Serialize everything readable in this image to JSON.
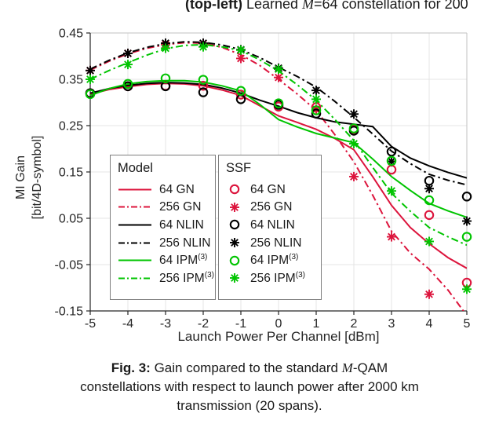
{
  "top_caption": {
    "bold": "(top-left)",
    "before_math": " Learned ",
    "math": "M",
    "rest": "=64 constellation for 200"
  },
  "axes": {
    "xlabel": "Launch Power Per Channel [dBm]",
    "ylabel_line1": "MI Gain",
    "ylabel_line2": "[bit/4D-symbol]"
  },
  "legend": {
    "model": {
      "title": "Model",
      "items": [
        {
          "label": "64 GN",
          "sup": ""
        },
        {
          "label": "256 GN",
          "sup": ""
        },
        {
          "label": "64 NLIN",
          "sup": ""
        },
        {
          "label": "256 NLIN",
          "sup": ""
        },
        {
          "label": "64 IPM",
          "sup": "(3)"
        },
        {
          "label": "256 IPM",
          "sup": "(3)"
        }
      ]
    },
    "ssf": {
      "title": "SSF",
      "items": [
        {
          "label": "64 GN",
          "sup": ""
        },
        {
          "label": "256 GN",
          "sup": ""
        },
        {
          "label": "64 NLIN",
          "sup": ""
        },
        {
          "label": "256 NLIN",
          "sup": ""
        },
        {
          "label": "64 IPM",
          "sup": "(3)"
        },
        {
          "label": "256 IPM",
          "sup": "(3)"
        }
      ]
    }
  },
  "caption": {
    "bold": "Fig. 3:",
    "line1_mid": " Gain compared to the standard ",
    "math": "M",
    "line1_end": "-QAM",
    "line2": "constellations with respect to launch power after 2000 km",
    "line3": "transmission (20 spans)."
  },
  "chart_data": {
    "type": "line",
    "title": "",
    "xlabel": "Launch Power Per Channel [dBm]",
    "ylabel": "MI Gain [bit/4D-symbol]",
    "xlim": [
      -5,
      5
    ],
    "ylim": [
      -0.15,
      0.45
    ],
    "grid": true,
    "legend_position": "southwest",
    "xtick_values": [
      -5,
      -4,
      -3,
      -2,
      -1,
      0,
      1,
      2,
      3,
      4,
      5
    ],
    "xtick_labels": [
      "-5",
      "-4",
      "-3",
      "-2",
      "-1",
      "0",
      "1",
      "2",
      "3",
      "4",
      "5"
    ],
    "ytick_values": [
      0.45,
      0.35,
      0.25,
      0.15,
      0.05,
      -0.05,
      -0.15
    ],
    "ytick_labels": [
      "0.45",
      "0.35",
      "0.25",
      "0.15",
      "0.05",
      "-0.05",
      "-0.15"
    ],
    "colors": {
      "GN": "#dc143c",
      "NLIN": "#000000",
      "IPM": "#00c400"
    },
    "model_lines": [
      {
        "name": "64 GN",
        "color": "#dc143c",
        "style": "solid",
        "x": [
          -5,
          -4.5,
          -4,
          -3.5,
          -3,
          -2.5,
          -2,
          -1.5,
          -1,
          -0.5,
          0,
          0.5,
          1,
          1.5,
          2,
          2.5,
          3,
          3.5,
          4,
          4.5,
          5
        ],
        "y": [
          0.318,
          0.328,
          0.334,
          0.339,
          0.341,
          0.34,
          0.336,
          0.327,
          0.315,
          0.293,
          0.271,
          0.257,
          0.242,
          0.222,
          0.198,
          0.14,
          0.078,
          0.03,
          -0.005,
          -0.035,
          -0.058
        ]
      },
      {
        "name": "256 GN",
        "color": "#dc143c",
        "style": "dashdot",
        "x": [
          -5,
          -4.5,
          -4,
          -3.5,
          -3,
          -2.5,
          -2,
          -1.5,
          -1,
          -0.5,
          0,
          0.5,
          1,
          1.5,
          2,
          2.5,
          3,
          3.5,
          4,
          4.5,
          5
        ],
        "y": [
          0.37,
          0.389,
          0.405,
          0.417,
          0.425,
          0.429,
          0.428,
          0.419,
          0.403,
          0.38,
          0.35,
          0.318,
          0.283,
          0.23,
          0.172,
          0.1,
          0.022,
          -0.025,
          -0.06,
          -0.105,
          -0.16
        ]
      },
      {
        "name": "64 NLIN",
        "color": "#000000",
        "style": "solid",
        "x": [
          -5,
          -4.5,
          -4,
          -3.5,
          -3,
          -2.5,
          -2,
          -1.5,
          -1,
          -0.5,
          0,
          0.5,
          1,
          1.5,
          2,
          2.5,
          3,
          3.5,
          4,
          4.5,
          5
        ],
        "y": [
          0.32,
          0.33,
          0.337,
          0.341,
          0.343,
          0.342,
          0.339,
          0.331,
          0.32,
          0.305,
          0.292,
          0.278,
          0.267,
          0.258,
          0.253,
          0.248,
          0.205,
          0.18,
          0.163,
          0.149,
          0.137
        ]
      },
      {
        "name": "256 NLIN",
        "color": "#000000",
        "style": "dashdot",
        "x": [
          -5,
          -4.5,
          -4,
          -3.5,
          -3,
          -2.5,
          -2,
          -1.5,
          -1,
          -0.5,
          0,
          0.5,
          1,
          1.5,
          2,
          2.5,
          3,
          3.5,
          4,
          4.5,
          5
        ],
        "y": [
          0.372,
          0.391,
          0.407,
          0.419,
          0.427,
          0.431,
          0.43,
          0.424,
          0.414,
          0.397,
          0.376,
          0.356,
          0.333,
          0.302,
          0.268,
          0.232,
          0.195,
          0.168,
          0.145,
          0.132,
          0.122
        ]
      },
      {
        "name": "64 IPM(3)",
        "color": "#00c400",
        "style": "solid",
        "x": [
          -5,
          -4.5,
          -4,
          -3.5,
          -3,
          -2.5,
          -2,
          -1.5,
          -1,
          -0.5,
          0,
          0.5,
          1,
          1.5,
          2,
          2.5,
          3,
          3.5,
          4,
          4.5,
          5
        ],
        "y": [
          0.315,
          0.33,
          0.34,
          0.345,
          0.347,
          0.347,
          0.344,
          0.336,
          0.325,
          0.296,
          0.263,
          0.247,
          0.233,
          0.223,
          0.213,
          0.178,
          0.14,
          0.11,
          0.082,
          0.066,
          0.052
        ]
      },
      {
        "name": "256 IPM(3)",
        "color": "#00c400",
        "style": "dashdot",
        "x": [
          -5,
          -4.5,
          -4,
          -3.5,
          -3,
          -2.5,
          -2,
          -1.5,
          -1,
          -0.5,
          0,
          0.5,
          1,
          1.5,
          2,
          2.5,
          3,
          3.5,
          4,
          4.5,
          5
        ],
        "y": [
          0.35,
          0.369,
          0.386,
          0.402,
          0.416,
          0.423,
          0.425,
          0.42,
          0.412,
          0.392,
          0.368,
          0.338,
          0.305,
          0.263,
          0.218,
          0.16,
          0.104,
          0.065,
          0.03,
          0.01,
          -0.008
        ]
      }
    ],
    "ssf_markers": [
      {
        "name": "64 GN",
        "color": "#dc143c",
        "marker": "circle",
        "x": [
          -5,
          -4,
          -3,
          -2,
          -1,
          0,
          1,
          2,
          3,
          4,
          5
        ],
        "y": [
          0.32,
          0.335,
          0.336,
          0.336,
          0.317,
          0.291,
          0.29,
          0.242,
          0.155,
          0.057,
          -0.089
        ]
      },
      {
        "name": "256 GN",
        "color": "#dc143c",
        "marker": "asterisk",
        "x": [
          -5,
          -4,
          -3,
          -2,
          -1,
          0,
          1,
          2,
          3,
          4
        ],
        "y": [
          0.369,
          0.406,
          0.425,
          0.427,
          0.395,
          0.354,
          0.285,
          0.14,
          0.01,
          -0.114
        ]
      },
      {
        "name": "64 NLIN",
        "color": "#000000",
        "marker": "circle",
        "x": [
          -5,
          -4,
          -3,
          -2,
          -1,
          0,
          1,
          2,
          3,
          4,
          5
        ],
        "y": [
          0.32,
          0.335,
          0.335,
          0.322,
          0.307,
          0.295,
          0.276,
          0.239,
          0.194,
          0.131,
          0.097
        ]
      },
      {
        "name": "256 NLIN",
        "color": "#000000",
        "marker": "asterisk",
        "x": [
          -5,
          -4,
          -3,
          -2,
          -1,
          0,
          1,
          2,
          3,
          4,
          5
        ],
        "y": [
          0.369,
          0.406,
          0.428,
          0.428,
          0.414,
          0.374,
          0.326,
          0.275,
          0.173,
          0.114,
          0.044
        ]
      },
      {
        "name": "64 IPM(3)",
        "color": "#00c400",
        "marker": "circle",
        "x": [
          -5,
          -4,
          -3,
          -2,
          -1,
          0,
          1,
          2,
          3,
          4,
          5
        ],
        "y": [
          0.318,
          0.34,
          0.352,
          0.349,
          0.325,
          0.298,
          0.283,
          0.244,
          0.174,
          0.089,
          0.01
        ]
      },
      {
        "name": "256 IPM(3)",
        "color": "#00c400",
        "marker": "asterisk",
        "x": [
          -5,
          -4,
          -3,
          -2,
          -1,
          0,
          1,
          2,
          3,
          4,
          5
        ],
        "y": [
          0.35,
          0.382,
          0.417,
          0.42,
          0.413,
          0.372,
          0.307,
          0.211,
          0.109,
          0.0,
          -0.103
        ]
      }
    ]
  }
}
